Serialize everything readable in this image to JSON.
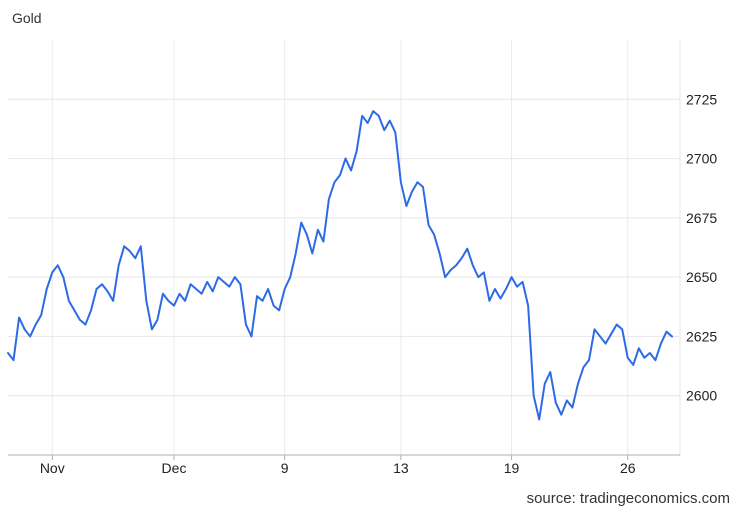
{
  "chart_data": {
    "type": "line",
    "title": "Gold",
    "source": "source: tradingeconomics.com",
    "xlabel": "",
    "ylabel": "",
    "ylim": [
      2575,
      2750
    ],
    "y_ticks": [
      2600,
      2625,
      2650,
      2675,
      2700,
      2725
    ],
    "x_tick_labels": [
      "Nov",
      "Dec",
      "9",
      "13",
      "19",
      "26"
    ],
    "x_tick_index": [
      8,
      30,
      50,
      71,
      91,
      112
    ],
    "grid": true,
    "line_color": "#2d6be6",
    "series": [
      {
        "values": [
          2618,
          2615,
          2633,
          2628,
          2625,
          2630,
          2634,
          2645,
          2652,
          2655,
          2650,
          2640,
          2636,
          2632,
          2630,
          2636,
          2645,
          2647,
          2644,
          2640,
          2655,
          2663,
          2661,
          2658,
          2663,
          2640,
          2628,
          2632,
          2643,
          2640,
          2638,
          2643,
          2640,
          2647,
          2645,
          2643,
          2648,
          2644,
          2650,
          2648,
          2646,
          2650,
          2647,
          2630,
          2625,
          2642,
          2640,
          2645,
          2638,
          2636,
          2645,
          2650,
          2660,
          2673,
          2668,
          2660,
          2670,
          2665,
          2683,
          2690,
          2693,
          2700,
          2695,
          2703,
          2718,
          2715,
          2720,
          2718,
          2712,
          2716,
          2711,
          2690,
          2680,
          2686,
          2690,
          2688,
          2672,
          2668,
          2660,
          2650,
          2653,
          2655,
          2658,
          2662,
          2655,
          2650,
          2652,
          2640,
          2645,
          2641,
          2645,
          2650,
          2646,
          2648,
          2638,
          2600,
          2590,
          2605,
          2610,
          2597,
          2592,
          2598,
          2595,
          2605,
          2612,
          2615,
          2628,
          2625,
          2622,
          2626,
          2630,
          2628,
          2616,
          2613,
          2620,
          2616,
          2618,
          2615,
          2622,
          2627,
          2625
        ]
      }
    ]
  }
}
